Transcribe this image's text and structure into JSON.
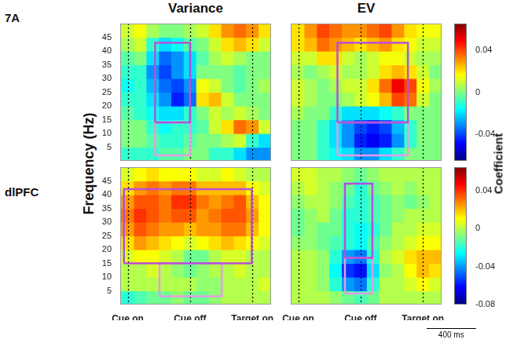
{
  "chart_data": {
    "type": "heatmap",
    "columns": [
      "Variance",
      "EV"
    ],
    "ylabel": "Frequency (Hz)",
    "colorbar_label": "Coefficient",
    "xlim": [
      -60,
      1150
    ],
    "xticks": [
      {
        "value": 0,
        "label": "Cue on"
      },
      {
        "value": 500,
        "label": "Cue off"
      },
      {
        "value": 1000,
        "label": "Target on"
      }
    ],
    "ylim": [
      0,
      50
    ],
    "yticks": [
      5,
      10,
      15,
      20,
      25,
      30,
      35,
      40,
      45
    ],
    "x_edges": [
      -60,
      50,
      150,
      250,
      350,
      450,
      550,
      650,
      750,
      850,
      950,
      1050,
      1150
    ],
    "y_edges": [
      0,
      5,
      10,
      15,
      20,
      25,
      30,
      35,
      40,
      45,
      50
    ],
    "scale_bar": {
      "value": 400,
      "label": "400 ms"
    },
    "rows": [
      {
        "label": "7A",
        "colorbar": {
          "range": [
            -0.065,
            0.065
          ],
          "ticks": [
            -0.04,
            0,
            0.04
          ]
        },
        "panels": [
          {
            "tick_labels": "y",
            "cells": [
              [
                -0.01,
                -0.01,
                -0.01,
                -0.005,
                -0.005,
                0,
                0,
                -0.01,
                -0.01,
                -0.02,
                -0.03,
                -0.03
              ],
              [
                0,
                0,
                -0.005,
                -0.01,
                -0.01,
                -0.005,
                0,
                0,
                0.005,
                0.01,
                -0.01,
                -0.02
              ],
              [
                0,
                0,
                -0.01,
                -0.015,
                -0.01,
                -0.01,
                -0.005,
                0.01,
                0.02,
                0.035,
                0.03,
                0.01
              ],
              [
                -0.005,
                -0.01,
                -0.015,
                -0.02,
                -0.02,
                -0.01,
                0,
                0.01,
                0.005,
                0.01,
                0.005,
                0
              ],
              [
                -0.01,
                -0.01,
                -0.02,
                -0.03,
                -0.045,
                -0.035,
                0.02,
                0.025,
                0.01,
                0,
                0,
                0
              ],
              [
                -0.015,
                -0.01,
                -0.025,
                -0.035,
                -0.04,
                -0.03,
                0.015,
                0.01,
                0,
                -0.005,
                0,
                0.005
              ],
              [
                -0.01,
                -0.01,
                -0.03,
                -0.04,
                -0.03,
                -0.02,
                0,
                0,
                0,
                -0.005,
                0,
                0
              ],
              [
                -0.005,
                0,
                -0.02,
                -0.035,
                -0.03,
                -0.02,
                -0.005,
                0.005,
                0.01,
                0.005,
                0,
                0
              ],
              [
                0.005,
                0.01,
                -0.01,
                -0.02,
                -0.015,
                -0.005,
                0,
                0.01,
                0.02,
                0.025,
                0.02,
                0.01
              ],
              [
                0.01,
                0.015,
                0.005,
                0,
                0,
                0.005,
                0.01,
                0.02,
                0.03,
                0.035,
                0.03,
                0.02
              ]
            ],
            "boxes": [
              {
                "x": [
                  220,
                  500
                ],
                "y": [
                  14,
                  43
                ],
                "color": "#b84fd8"
              },
              {
                "x": [
                  220,
                  500
                ],
                "y": [
                  2,
                  14
                ],
                "color": "#e39be8"
              }
            ]
          },
          {
            "tick_labels": false,
            "cells": [
              [
                0,
                0,
                -0.01,
                -0.015,
                -0.02,
                -0.03,
                -0.03,
                -0.02,
                -0.01,
                0,
                0,
                0
              ],
              [
                0,
                0,
                -0.01,
                -0.02,
                -0.03,
                -0.045,
                -0.05,
                -0.045,
                -0.03,
                -0.01,
                0,
                0
              ],
              [
                0,
                0,
                -0.01,
                -0.02,
                -0.03,
                -0.04,
                -0.045,
                -0.04,
                -0.025,
                -0.01,
                0,
                0
              ],
              [
                0.005,
                0,
                0,
                -0.01,
                -0.02,
                -0.02,
                -0.02,
                -0.015,
                -0.01,
                0,
                0,
                0
              ],
              [
                0.01,
                0.005,
                0,
                0,
                0.005,
                0.01,
                0.015,
                0.025,
                0.04,
                0.035,
                0.01,
                0
              ],
              [
                0.01,
                0.005,
                0,
                0.005,
                0.01,
                0.01,
                0.02,
                0.035,
                0.05,
                0.04,
                0.015,
                0.005
              ],
              [
                0.005,
                0,
                0.005,
                0.01,
                0.005,
                0.005,
                0.01,
                0.02,
                0.025,
                0.02,
                0.01,
                0
              ],
              [
                0.01,
                0.01,
                0.02,
                0.02,
                0.01,
                0.005,
                0.01,
                0.015,
                0.015,
                0.01,
                0.005,
                0.005
              ],
              [
                0.02,
                0.025,
                0.035,
                0.03,
                0.025,
                0.02,
                0.025,
                0.03,
                0.02,
                0.015,
                0.01,
                0.01
              ],
              [
                0.02,
                0.03,
                0.04,
                0.035,
                0.03,
                0.03,
                0.035,
                0.04,
                0.03,
                0.02,
                0.015,
                0.015
              ]
            ],
            "boxes": [
              {
                "x": [
                  315,
                  880
                ],
                "y": [
                  14,
                  43
                ],
                "color": "#b84fd8"
              },
              {
                "x": [
                  315,
                  880
                ],
                "y": [
                  2,
                  14
                ],
                "color": "#e39be8"
              }
            ]
          }
        ]
      },
      {
        "label": "dlPFC",
        "colorbar": {
          "range": [
            -0.08,
            0.065
          ],
          "ticks": [
            -0.08,
            -0.04,
            0,
            0.04
          ]
        },
        "panels": [
          {
            "tick_labels": true,
            "cells": [
              [
                -0.02,
                -0.015,
                -0.01,
                -0.01,
                -0.005,
                -0.01,
                -0.01,
                -0.005,
                0,
                0,
                0,
                0
              ],
              [
                0,
                0,
                0,
                0,
                0,
                0,
                -0.005,
                -0.005,
                0,
                0,
                0,
                0.005
              ],
              [
                0,
                0,
                0.005,
                0,
                -0.005,
                -0.01,
                -0.005,
                0,
                0,
                0.005,
                0,
                0
              ],
              [
                0.005,
                0.01,
                0.01,
                0.005,
                0,
                -0.01,
                -0.01,
                0,
                0.005,
                0.005,
                0,
                0
              ],
              [
                0.015,
                0.025,
                0.02,
                0.015,
                0.01,
                0.005,
                0.01,
                0.015,
                0.02,
                0.015,
                0.01,
                0.005
              ],
              [
                0.025,
                0.035,
                0.03,
                0.025,
                0.025,
                0.02,
                0.025,
                0.025,
                0.03,
                0.03,
                0.02,
                0.01
              ],
              [
                0.03,
                0.04,
                0.035,
                0.03,
                0.035,
                0.035,
                0.025,
                0.03,
                0.035,
                0.035,
                0.025,
                0.01
              ],
              [
                0.025,
                0.035,
                0.035,
                0.03,
                0.04,
                0.04,
                0.03,
                0.025,
                0.03,
                0.035,
                0.02,
                0.01
              ],
              [
                0.015,
                0.025,
                0.03,
                0.025,
                0.03,
                0.03,
                0.02,
                0.02,
                0.02,
                0.02,
                0.01,
                0.005
              ],
              [
                0.005,
                0.01,
                0.015,
                0.01,
                0.01,
                0.01,
                0.005,
                0.005,
                0.01,
                0.005,
                0,
                0
              ]
            ],
            "boxes": [
              {
                "x": [
                  -30,
                  995
                ],
                "y": [
                  15,
                  42
                ],
                "color": "#b84fd8"
              },
              {
                "x": [
                  255,
                  755
                ],
                "y": [
                  3,
                  15
                ],
                "color": "#e39be8"
              }
            ]
          },
          {
            "tick_labels": "x",
            "cells": [
              [
                0,
                0,
                0,
                -0.005,
                -0.01,
                -0.015,
                -0.01,
                0,
                0,
                0,
                0,
                0
              ],
              [
                0,
                0,
                -0.005,
                -0.02,
                -0.04,
                -0.045,
                -0.02,
                0,
                0,
                0.005,
                0.01,
                0.005
              ],
              [
                0,
                0,
                -0.005,
                -0.025,
                -0.055,
                -0.06,
                -0.03,
                -0.005,
                0,
                0.01,
                0.02,
                0.015
              ],
              [
                0,
                0,
                -0.005,
                -0.02,
                -0.04,
                -0.045,
                -0.02,
                0,
                0.005,
                0.015,
                0.02,
                0.02
              ],
              [
                -0.005,
                -0.005,
                -0.01,
                -0.015,
                -0.02,
                -0.025,
                -0.015,
                -0.005,
                0,
                0.005,
                0.01,
                0.01
              ],
              [
                -0.01,
                -0.005,
                -0.01,
                -0.01,
                -0.02,
                -0.025,
                -0.02,
                -0.01,
                0,
                0,
                0.005,
                0.005
              ],
              [
                -0.01,
                -0.005,
                0,
                -0.01,
                -0.02,
                -0.02,
                -0.015,
                -0.01,
                -0.005,
                0,
                0,
                0
              ],
              [
                -0.005,
                0,
                0,
                -0.005,
                -0.015,
                -0.02,
                -0.015,
                -0.01,
                -0.005,
                -0.01,
                -0.005,
                0
              ],
              [
                0,
                0.005,
                0,
                -0.005,
                -0.01,
                -0.02,
                -0.01,
                -0.005,
                0,
                -0.005,
                0,
                0
              ],
              [
                0.005,
                0.005,
                0,
                0,
                -0.005,
                -0.01,
                -0.005,
                0,
                0,
                0,
                0,
                0
              ]
            ],
            "boxes": [
              {
                "x": [
                  375,
                  595
                ],
                "y": [
                  17,
                  44
                ],
                "color": "#b84fd8"
              },
              {
                "x": [
                  375,
                  595
                ],
                "y": [
                  4,
                  17
                ],
                "color": "#e39be8"
              }
            ]
          }
        ]
      }
    ]
  }
}
